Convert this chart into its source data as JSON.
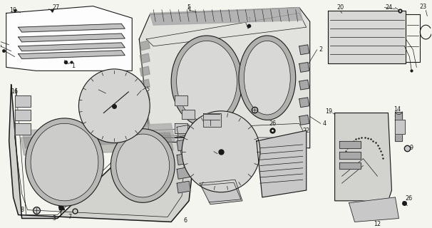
{
  "bg_color": "#f5f5f0",
  "line_color": "#1a1a1a",
  "fig_width": 6.06,
  "fig_height": 3.2,
  "dpi": 100,
  "label_fs": 5.8,
  "lw_thin": 0.5,
  "lw_med": 0.8,
  "lw_thick": 1.1,
  "gray_light": "#c8c8c8",
  "gray_mid": "#a8a8a8",
  "gray_dark": "#888888",
  "white": "#ffffff"
}
